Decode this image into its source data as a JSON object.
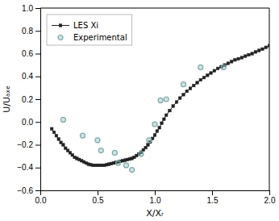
{
  "chart_data": {
    "type": "line",
    "xlabel": "X/Xᵣ",
    "ylabel": "U/Uₐₓₑ",
    "xlim": [
      0,
      2
    ],
    "ylim": [
      -0.6,
      1
    ],
    "xticks": [
      {
        "value": 0,
        "label": "0.0"
      },
      {
        "value": 0.5,
        "label": "0.5"
      },
      {
        "value": 1,
        "label": "1.0"
      },
      {
        "value": 1.5,
        "label": "1.5"
      },
      {
        "value": 2,
        "label": "2.0"
      }
    ],
    "yticks": [
      {
        "value": -0.6,
        "label": "−0.6"
      },
      {
        "value": -0.4,
        "label": "−0.4"
      },
      {
        "value": -0.2,
        "label": "−0.2"
      },
      {
        "value": 0,
        "label": "0.0"
      },
      {
        "value": 0.2,
        "label": "0.2"
      },
      {
        "value": 0.4,
        "label": "0.4"
      },
      {
        "value": 0.6,
        "label": "0.6"
      },
      {
        "value": 0.8,
        "label": "0.8"
      },
      {
        "value": 1,
        "label": "1.0"
      }
    ],
    "grid": false,
    "legend": "upper left",
    "series": [
      {
        "name": "LES Xi",
        "type": "line",
        "marker": "square",
        "color": "#222222",
        "x": [
          0.1,
          0.12,
          0.14,
          0.16,
          0.18,
          0.2,
          0.22,
          0.24,
          0.26,
          0.28,
          0.3,
          0.32,
          0.34,
          0.36,
          0.38,
          0.4,
          0.42,
          0.44,
          0.46,
          0.48,
          0.5,
          0.52,
          0.54,
          0.56,
          0.58,
          0.6,
          0.62,
          0.64,
          0.66,
          0.68,
          0.7,
          0.72,
          0.74,
          0.76,
          0.78,
          0.8,
          0.82,
          0.84,
          0.86,
          0.88,
          0.9,
          0.92,
          0.94,
          0.96,
          0.98,
          1.0,
          1.02,
          1.04,
          1.06,
          1.08,
          1.1,
          1.13,
          1.16,
          1.19,
          1.22,
          1.25,
          1.28,
          1.31,
          1.34,
          1.37,
          1.4,
          1.43,
          1.46,
          1.49,
          1.52,
          1.55,
          1.58,
          1.61,
          1.64,
          1.67,
          1.7,
          1.73,
          1.76,
          1.79,
          1.82,
          1.85,
          1.88,
          1.91,
          1.94,
          1.97,
          2.0
        ],
        "values": [
          -0.06,
          -0.09,
          -0.12,
          -0.15,
          -0.18,
          -0.2,
          -0.23,
          -0.25,
          -0.27,
          -0.29,
          -0.31,
          -0.32,
          -0.33,
          -0.34,
          -0.35,
          -0.36,
          -0.37,
          -0.375,
          -0.38,
          -0.38,
          -0.38,
          -0.38,
          -0.38,
          -0.38,
          -0.375,
          -0.37,
          -0.365,
          -0.36,
          -0.355,
          -0.35,
          -0.345,
          -0.34,
          -0.335,
          -0.33,
          -0.325,
          -0.32,
          -0.31,
          -0.295,
          -0.28,
          -0.265,
          -0.245,
          -0.225,
          -0.2,
          -0.175,
          -0.145,
          -0.115,
          -0.08,
          -0.05,
          -0.01,
          0.025,
          0.06,
          0.1,
          0.14,
          0.175,
          0.21,
          0.24,
          0.27,
          0.295,
          0.32,
          0.345,
          0.37,
          0.39,
          0.41,
          0.43,
          0.45,
          0.47,
          0.485,
          0.5,
          0.515,
          0.53,
          0.545,
          0.555,
          0.565,
          0.578,
          0.59,
          0.6,
          0.615,
          0.628,
          0.64,
          0.655,
          0.67
        ]
      },
      {
        "name": "Experimental",
        "type": "scatter",
        "marker": "circle",
        "color": "#7aacac",
        "x": [
          0.2,
          0.37,
          0.5,
          0.53,
          0.65,
          0.68,
          0.75,
          0.8,
          0.88,
          0.95,
          1.0,
          1.05,
          1.1,
          1.25,
          1.4,
          1.6
        ],
        "values": [
          0.02,
          -0.12,
          -0.16,
          -0.25,
          -0.27,
          -0.36,
          -0.38,
          -0.42,
          -0.28,
          -0.16,
          -0.02,
          0.19,
          0.2,
          0.33,
          0.48,
          0.48
        ]
      }
    ]
  }
}
